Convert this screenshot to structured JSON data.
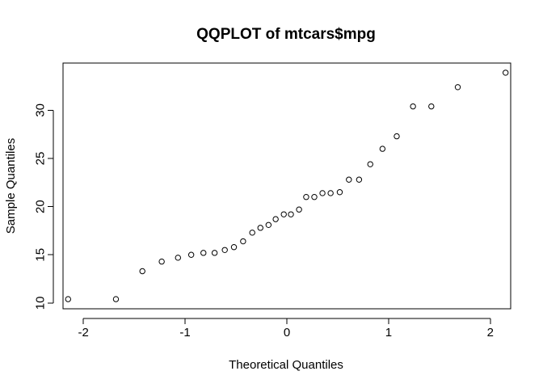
{
  "chart_data": {
    "type": "scatter",
    "title": "QQPLOT of mtcars$mpg",
    "xlabel": "Theoretical Quantiles",
    "ylabel": "Sample Quantiles",
    "xlim": [
      -2.2,
      2.2
    ],
    "ylim": [
      9.4,
      34.9
    ],
    "x_ticks": [
      -2,
      -1,
      0,
      1,
      2
    ],
    "y_ticks": [
      10,
      15,
      20,
      25,
      30
    ],
    "grid": false,
    "legend": "none",
    "colors": {
      "background": "#ffffff",
      "foreground": "#000000"
    },
    "points": [
      {
        "x": -2.15,
        "y": 10.4
      },
      {
        "x": -1.68,
        "y": 10.4
      },
      {
        "x": -1.42,
        "y": 13.3
      },
      {
        "x": -1.23,
        "y": 14.3
      },
      {
        "x": -1.07,
        "y": 14.7
      },
      {
        "x": -0.94,
        "y": 15.0
      },
      {
        "x": -0.82,
        "y": 15.2
      },
      {
        "x": -0.71,
        "y": 15.2
      },
      {
        "x": -0.61,
        "y": 15.5
      },
      {
        "x": -0.52,
        "y": 15.8
      },
      {
        "x": -0.43,
        "y": 16.4
      },
      {
        "x": -0.34,
        "y": 17.3
      },
      {
        "x": -0.26,
        "y": 17.8
      },
      {
        "x": -0.18,
        "y": 18.1
      },
      {
        "x": -0.11,
        "y": 18.7
      },
      {
        "x": -0.03,
        "y": 19.2
      },
      {
        "x": 0.04,
        "y": 19.2
      },
      {
        "x": 0.12,
        "y": 19.7
      },
      {
        "x": 0.19,
        "y": 21.0
      },
      {
        "x": 0.27,
        "y": 21.0
      },
      {
        "x": 0.35,
        "y": 21.4
      },
      {
        "x": 0.43,
        "y": 21.4
      },
      {
        "x": 0.52,
        "y": 21.5
      },
      {
        "x": 0.61,
        "y": 22.8
      },
      {
        "x": 0.71,
        "y": 22.8
      },
      {
        "x": 0.82,
        "y": 24.4
      },
      {
        "x": 0.94,
        "y": 26.0
      },
      {
        "x": 1.08,
        "y": 27.3
      },
      {
        "x": 1.24,
        "y": 30.4
      },
      {
        "x": 1.42,
        "y": 30.4
      },
      {
        "x": 1.68,
        "y": 32.4
      },
      {
        "x": 2.15,
        "y": 33.9
      }
    ]
  }
}
